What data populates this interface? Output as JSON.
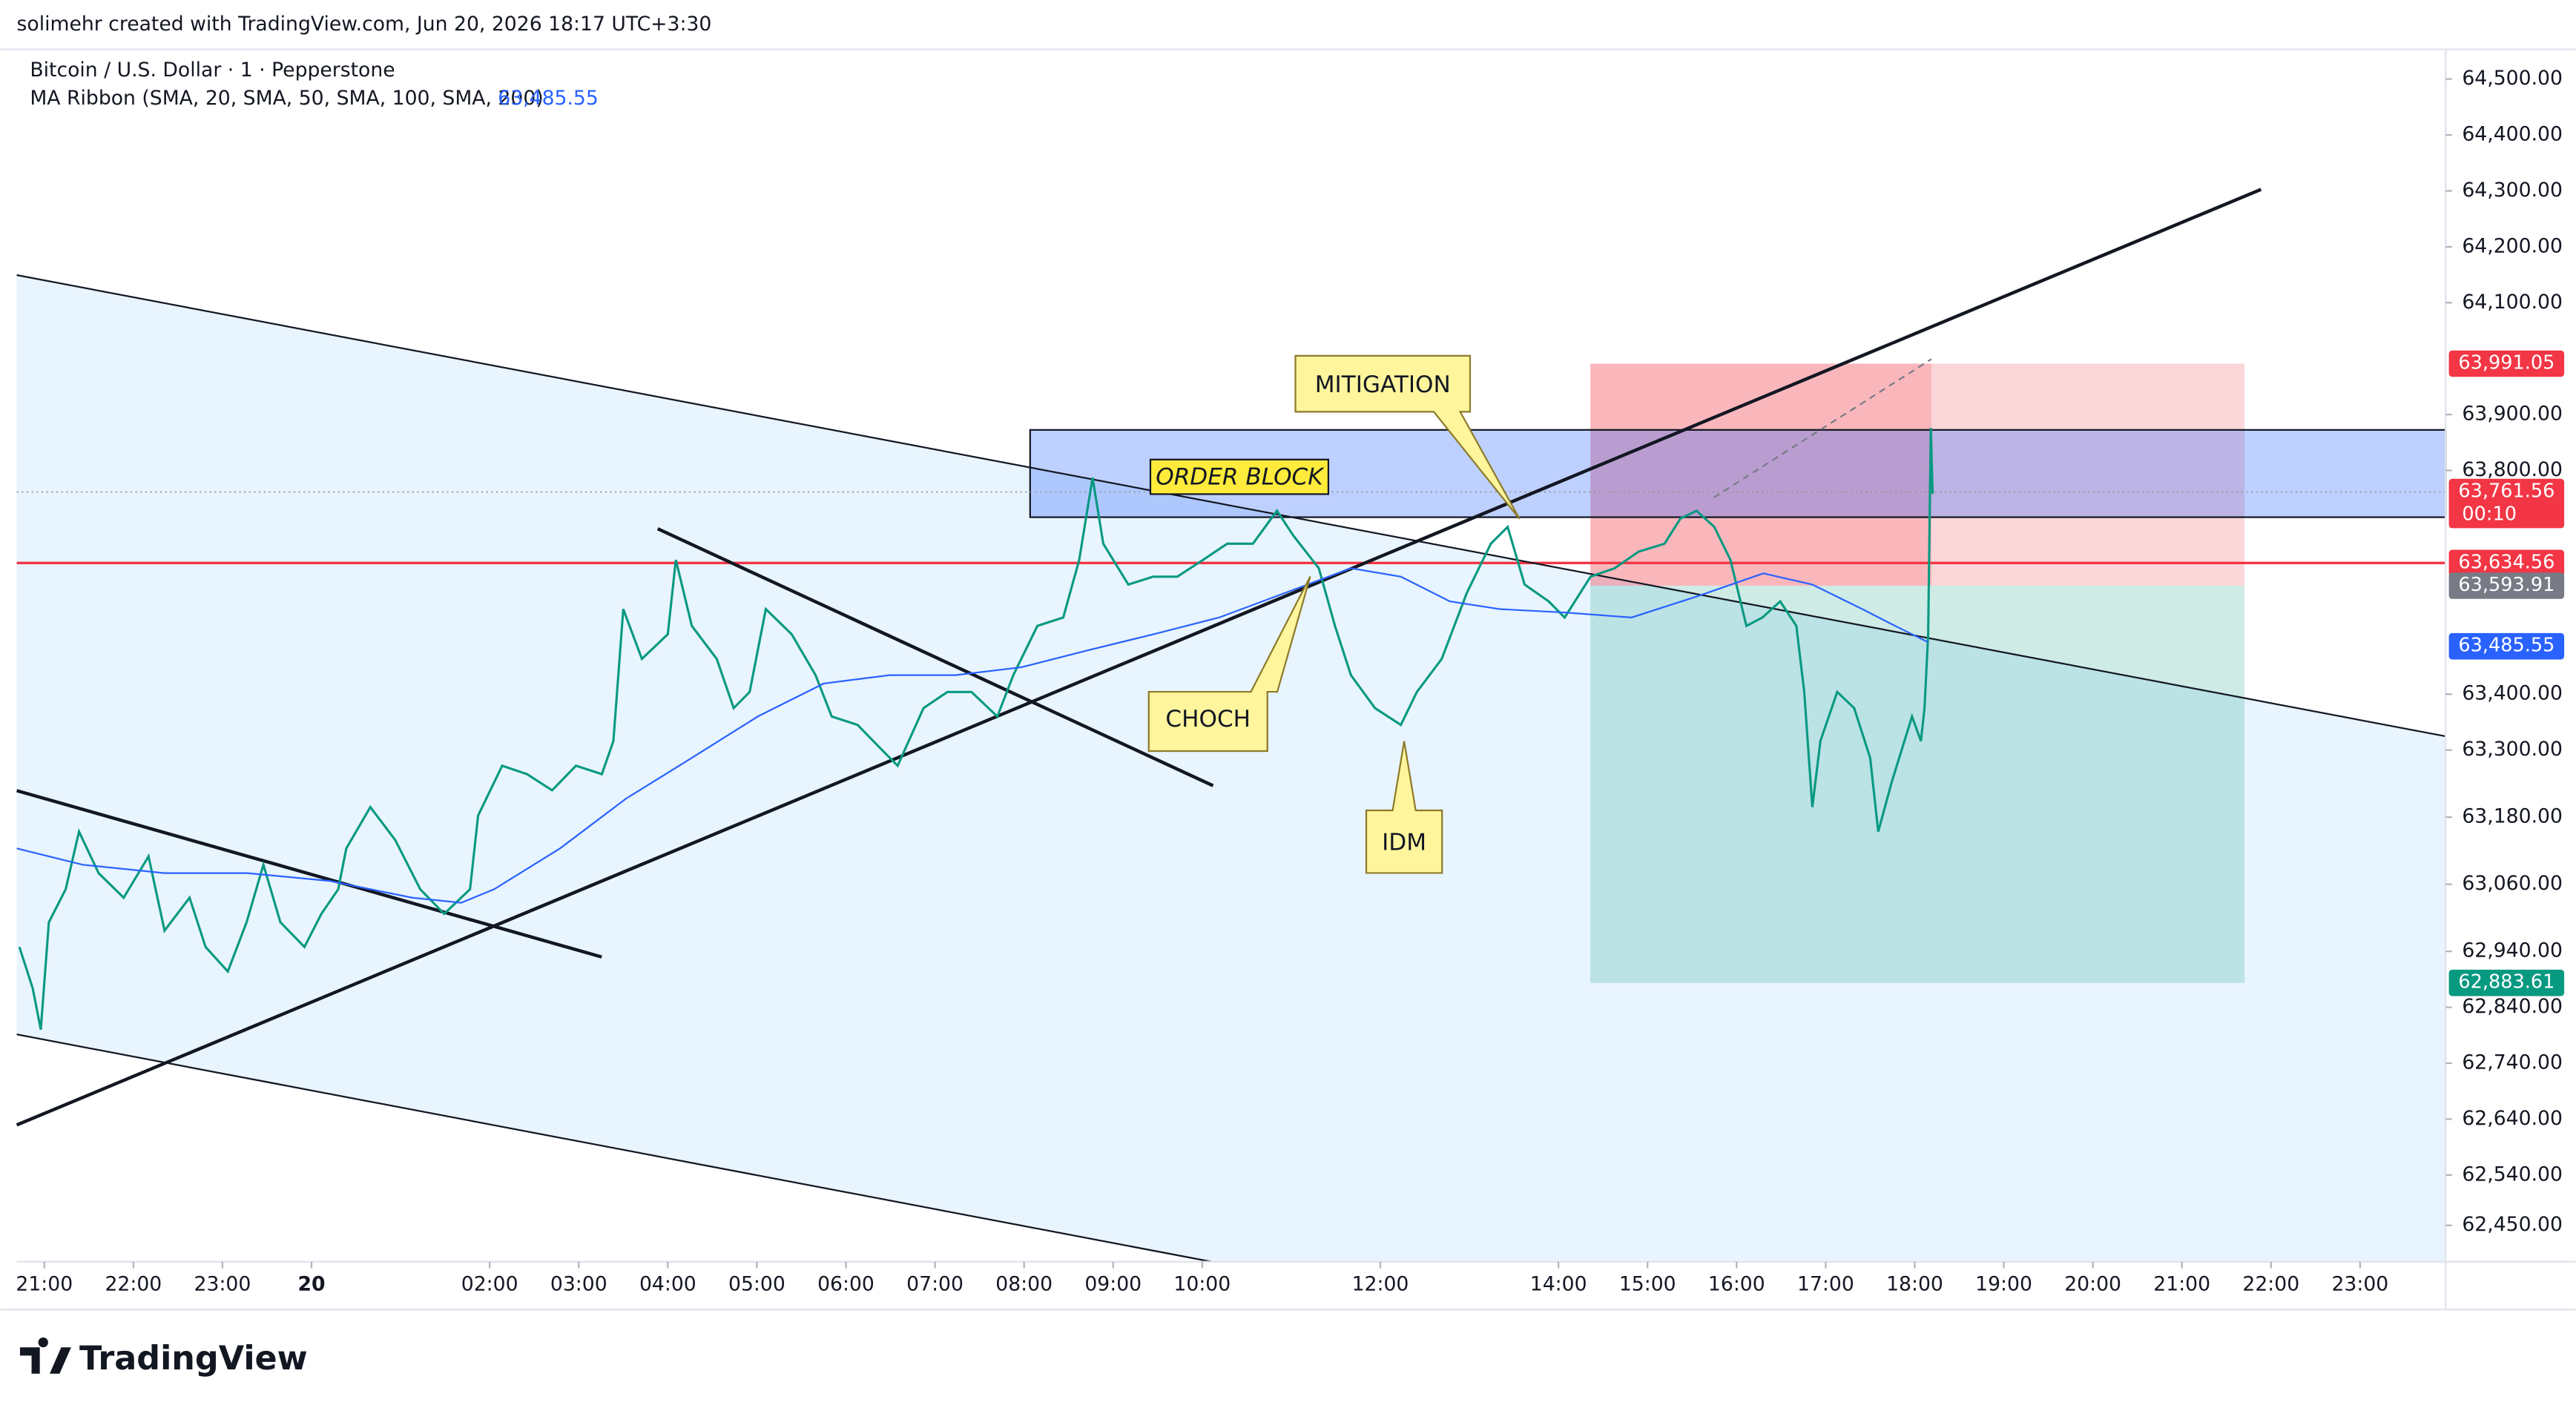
{
  "attribution": "solimehr created with TradingView.com, Jun 20, 2026 18:17 UTC+3:30",
  "footer": "TradingView",
  "chart_data": {
    "type": "line",
    "title": "Bitcoin / U.S. Dollar · 1 · Pepperstone",
    "indicator": "MA Ribbon (SMA, 20, SMA, 50, SMA, 100, SMA, 200)",
    "indicator_value": {
      "value": 63485.55,
      "label": "63,485.55"
    },
    "xlim": [
      -0.31,
      26.96
    ],
    "ylim": [
      62385,
      64553
    ],
    "xticks": [
      {
        "value": 0,
        "label": "21:00"
      },
      {
        "value": 1,
        "label": "22:00"
      },
      {
        "value": 2,
        "label": "23:00"
      },
      {
        "value": 3,
        "label": "20"
      },
      {
        "value": 5,
        "label": "02:00"
      },
      {
        "value": 6,
        "label": "03:00"
      },
      {
        "value": 7,
        "label": "04:00"
      },
      {
        "value": 8,
        "label": "05:00"
      },
      {
        "value": 9,
        "label": "06:00"
      },
      {
        "value": 10,
        "label": "07:00"
      },
      {
        "value": 11,
        "label": "08:00"
      },
      {
        "value": 12,
        "label": "09:00"
      },
      {
        "value": 13,
        "label": "10:00"
      },
      {
        "value": 15,
        "label": "12:00"
      },
      {
        "value": 17,
        "label": "14:00"
      },
      {
        "value": 18,
        "label": "15:00"
      },
      {
        "value": 19,
        "label": "16:00"
      },
      {
        "value": 20,
        "label": "17:00"
      },
      {
        "value": 21,
        "label": "18:00"
      },
      {
        "value": 22,
        "label": "19:00"
      },
      {
        "value": 23,
        "label": "20:00"
      },
      {
        "value": 24,
        "label": "21:00"
      },
      {
        "value": 25,
        "label": "22:00"
      },
      {
        "value": 26,
        "label": "23:00"
      }
    ],
    "yticks": [
      {
        "value": 64500,
        "label": "64,500.00"
      },
      {
        "value": 64400,
        "label": "64,400.00"
      },
      {
        "value": 64300,
        "label": "64,300.00"
      },
      {
        "value": 64200,
        "label": "64,200.00"
      },
      {
        "value": 64100,
        "label": "64,100.00"
      },
      {
        "value": 63900,
        "label": "63,900.00"
      },
      {
        "value": 63800,
        "label": "63,800.00"
      },
      {
        "value": 63400,
        "label": "63,400.00"
      },
      {
        "value": 63300,
        "label": "63,300.00"
      },
      {
        "value": 63180,
        "label": "63,180.00"
      },
      {
        "value": 63060,
        "label": "63,060.00"
      },
      {
        "value": 62940,
        "label": "62,940.00"
      },
      {
        "value": 62840,
        "label": "62,840.00"
      },
      {
        "value": 62740,
        "label": "62,740.00"
      },
      {
        "value": 62640,
        "label": "62,640.00"
      },
      {
        "value": 62540,
        "label": "62,540.00"
      },
      {
        "value": 62450,
        "label": "62,450.00"
      }
    ],
    "series": [
      {
        "color": "#089981",
        "x": [
          -0.28,
          -0.13,
          -0.04,
          0.05,
          0.24,
          0.39,
          0.61,
          0.89,
          1.17,
          1.35,
          1.63,
          1.81,
          2.06,
          2.27,
          2.46,
          2.65,
          2.92,
          3.11,
          3.3,
          3.39,
          3.66,
          3.94,
          4.22,
          4.49,
          4.78,
          4.87,
          5.14,
          5.42,
          5.7,
          5.97,
          6.26,
          6.39,
          6.5,
          6.71,
          7.0,
          7.09,
          7.27,
          7.55,
          7.74,
          7.92,
          8.1,
          8.39,
          8.66,
          8.84,
          9.13,
          9.4,
          9.58,
          9.87,
          10.14,
          10.41,
          10.7,
          10.88,
          11.15,
          11.44,
          11.62,
          11.77,
          11.89,
          12.17,
          12.45,
          12.72,
          13.01,
          13.28,
          13.57,
          13.84,
          14.02,
          14.31,
          14.49,
          14.67,
          14.94,
          15.23,
          15.41,
          15.69,
          15.97,
          16.24,
          16.43,
          16.62,
          16.89,
          17.07,
          17.36,
          17.63,
          17.9,
          18.19,
          18.37,
          18.55,
          18.75,
          18.93,
          19.11,
          19.29,
          19.49,
          19.67,
          19.76,
          19.85,
          19.94,
          20.13,
          20.32,
          20.5,
          20.59,
          20.74,
          20.97,
          21.07,
          21.11,
          21.15,
          21.18,
          21.2
        ],
        "values": [
          62948,
          62874,
          62800,
          62992,
          63051,
          63154,
          63080,
          63036,
          63110,
          62977,
          63036,
          62948,
          62904,
          62992,
          63095,
          62992,
          62948,
          63007,
          63051,
          63124,
          63198,
          63139,
          63051,
          63007,
          63051,
          63183,
          63272,
          63257,
          63228,
          63272,
          63257,
          63316,
          63552,
          63463,
          63507,
          63640,
          63522,
          63463,
          63375,
          63404,
          63552,
          63507,
          63434,
          63360,
          63345,
          63301,
          63272,
          63375,
          63404,
          63404,
          63360,
          63434,
          63522,
          63537,
          63640,
          63787,
          63669,
          63596,
          63610,
          63610,
          63640,
          63669,
          63669,
          63728,
          63684,
          63625,
          63522,
          63434,
          63375,
          63345,
          63404,
          63463,
          63581,
          63669,
          63699,
          63596,
          63566,
          63537,
          63610,
          63625,
          63655,
          63669,
          63714,
          63728,
          63699,
          63640,
          63522,
          63537,
          63566,
          63522,
          63404,
          63198,
          63316,
          63404,
          63375,
          63286,
          63154,
          63242,
          63360,
          63316,
          63375,
          63507,
          63876,
          63758
        ]
      },
      {
        "color": "#2962ff",
        "x": [
          -0.31,
          0.43,
          1.35,
          2.28,
          3.2,
          4.13,
          4.68,
          5.05,
          5.79,
          6.53,
          7.27,
          8.01,
          8.75,
          9.49,
          10.23,
          10.97,
          11.71,
          12.45,
          13.19,
          13.93,
          14.67,
          15.23,
          15.78,
          16.34,
          17.08,
          17.82,
          18.56,
          19.3,
          19.85,
          20.41,
          20.78,
          21.15
        ],
        "values": [
          63124,
          63095,
          63080,
          63080,
          63066,
          63036,
          63027,
          63051,
          63124,
          63213,
          63286,
          63360,
          63419,
          63434,
          63434,
          63448,
          63478,
          63507,
          63537,
          63581,
          63625,
          63610,
          63566,
          63552,
          63546,
          63537,
          63575,
          63616,
          63596,
          63552,
          63522,
          63493
        ]
      }
    ],
    "price_labels": [
      {
        "value": 63991.05,
        "label": "63,991.05",
        "color": "#f23645"
      },
      {
        "value": 63761.56,
        "label": "63,761.56",
        "color": "#f23645"
      },
      {
        "value": 63634.56,
        "label": "63,634.56",
        "color": "#f23645"
      },
      {
        "value": 63593.91,
        "label": "63,593.91",
        "color": "#787b86"
      },
      {
        "value": 63485.55,
        "label": "63,485.55",
        "color": "#2962ff"
      },
      {
        "value": 62883.61,
        "label": "62,883.61",
        "color": "#089981"
      }
    ],
    "countdown": "00:10",
    "annotations": [
      "ORDER BLOCK",
      "MITIGATION",
      "CHOCH",
      "IDM"
    ]
  }
}
